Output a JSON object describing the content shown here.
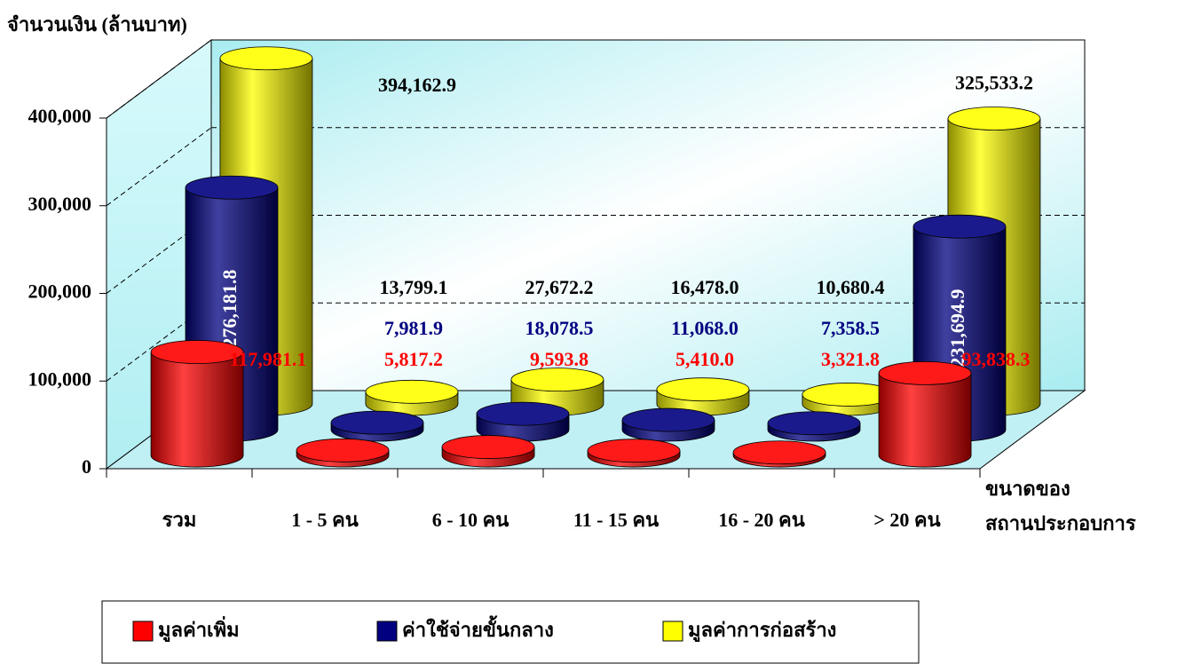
{
  "chart_data": {
    "type": "bar3d",
    "y_label": "จำนวนเงิน (ล้านบาท)",
    "x_label": [
      "ขนาดของ",
      "สถานประกอบการ"
    ],
    "categories": [
      "รวม",
      "1 - 5 คน",
      "6 - 10 คน",
      "11 - 15 คน",
      "16 - 20 คน",
      "> 20 คน"
    ],
    "series": [
      {
        "name": "มูลค่าเพิ่ม",
        "color": "#ff0000",
        "values": [
          117981.1,
          5817.2,
          9593.8,
          5410.0,
          3321.8,
          93838.3
        ],
        "value_labels": [
          "117,981.1",
          "5,817.2",
          "9,593.8",
          "5,410.0",
          "3,321.8",
          "93,838.3"
        ]
      },
      {
        "name": "ค่าใช้จ่ายขั้นกลาง",
        "color": "#000080",
        "values": [
          276181.8,
          7981.9,
          18078.5,
          11068.0,
          7358.5,
          231694.9
        ],
        "value_labels": [
          "276,181.8",
          "7,981.9",
          "18,078.5",
          "11,068.0",
          "7,358.5",
          "231,694.9"
        ]
      },
      {
        "name": "มูลค่าการก่อสร้าง",
        "color": "#ffff00",
        "values": [
          394162.9,
          13799.1,
          27672.2,
          16478.0,
          10680.4,
          325533.2
        ],
        "value_labels": [
          "394,162.9",
          "13,799.1",
          "27,672.2",
          "16,478.0",
          "10,680.4",
          "325,533.2"
        ]
      }
    ],
    "ylim": [
      0,
      400000
    ],
    "yticks": [
      0,
      {
        "value": 100000,
        "label": "100,000"
      },
      {
        "value": 200000,
        "label": "200,000"
      },
      {
        "value": 300000,
        "label": "300,000"
      },
      {
        "value": 400000,
        "label": "400,000"
      }
    ],
    "grid": true,
    "legend": "bottom"
  }
}
